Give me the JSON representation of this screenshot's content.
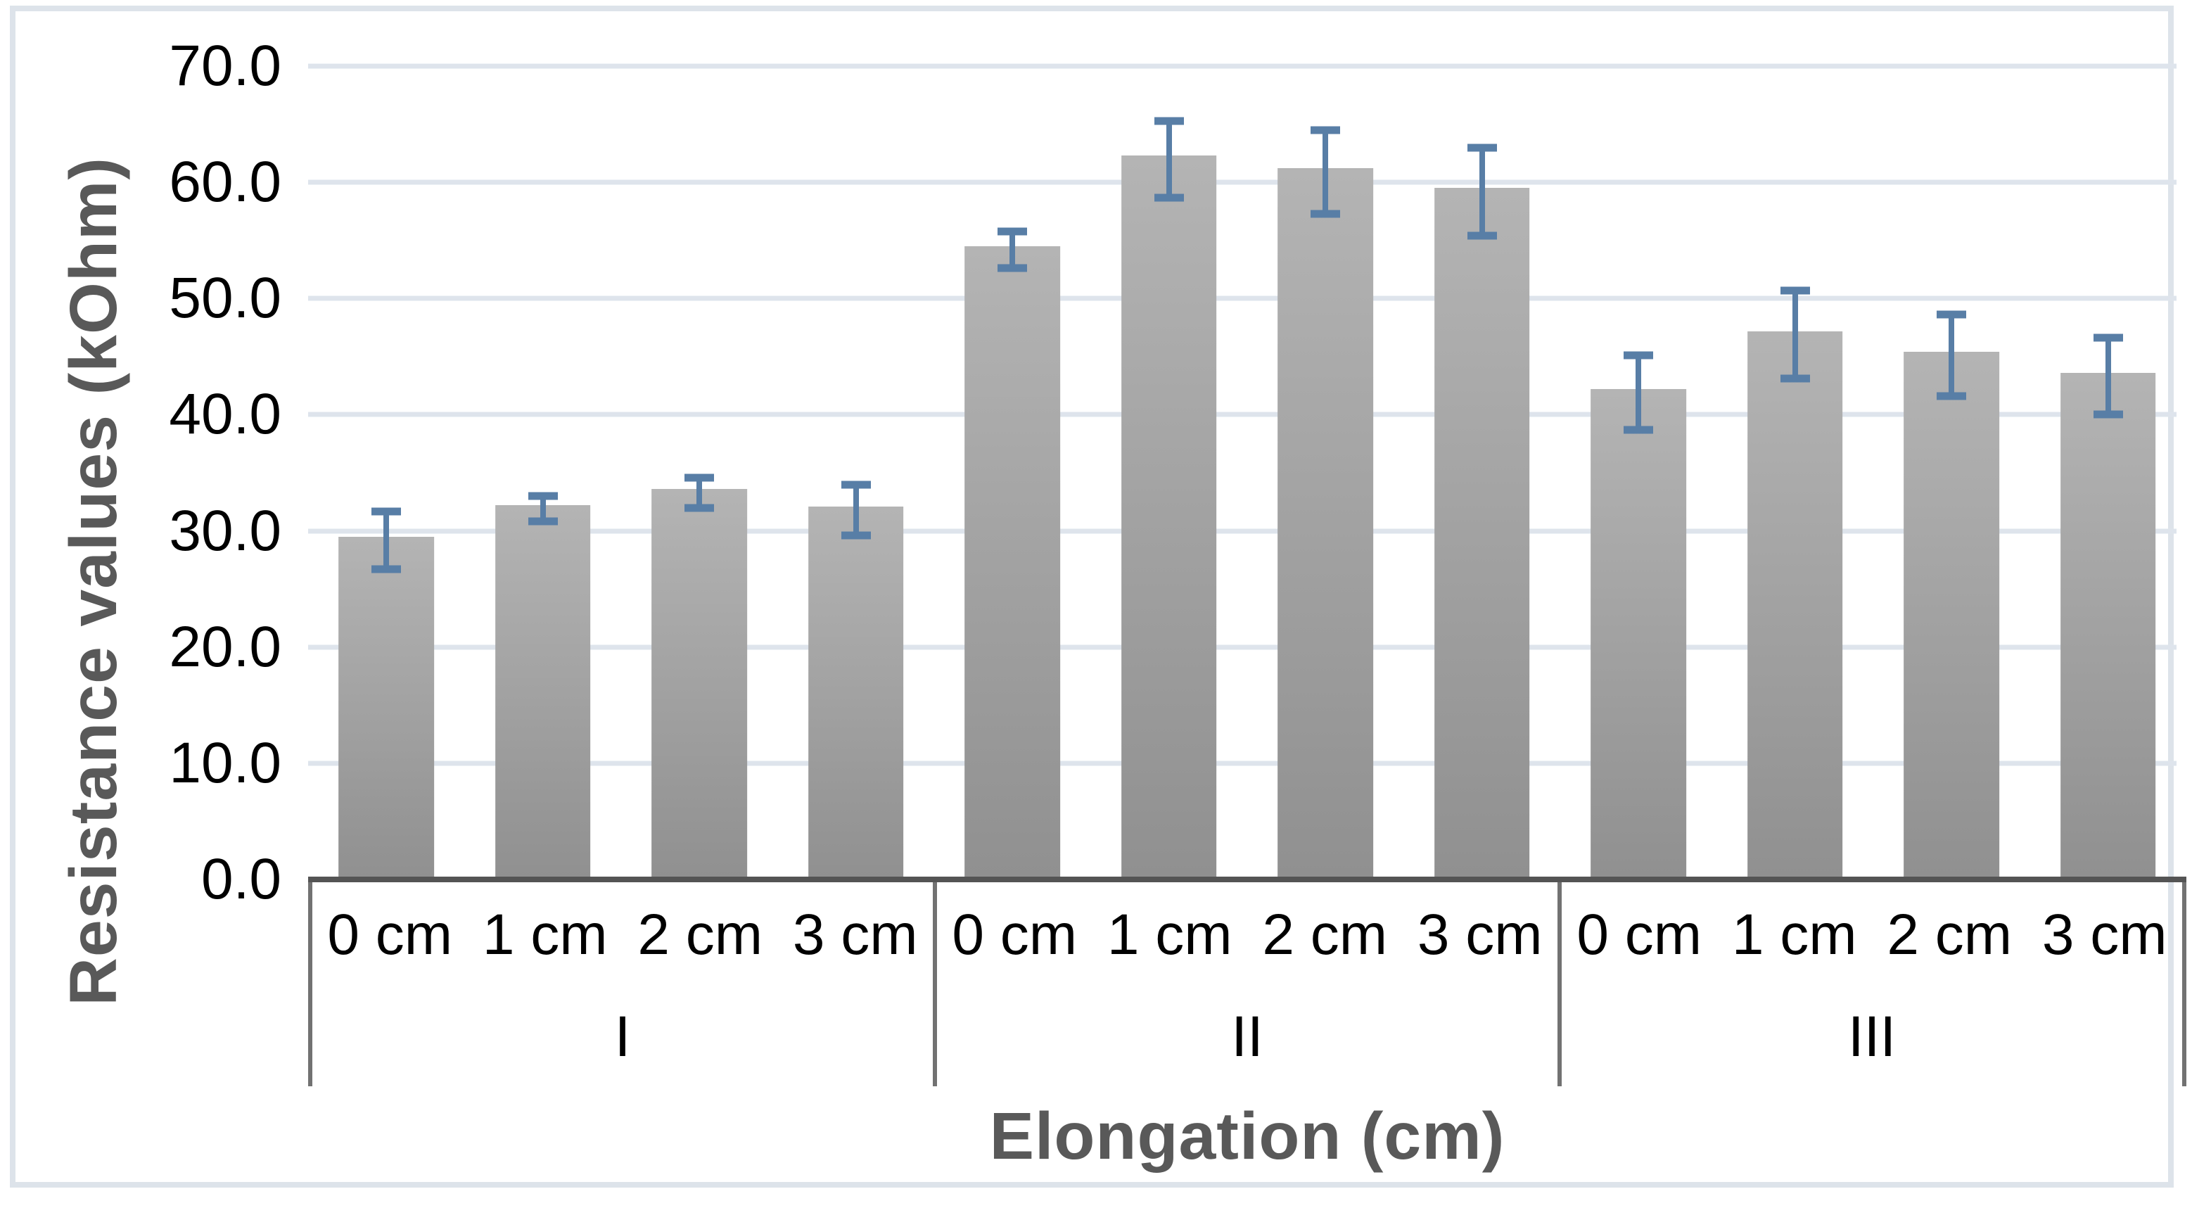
{
  "figure": {
    "background": "#ffffff",
    "border_color": "#dde3ea"
  },
  "chart_data": {
    "type": "bar",
    "title": "",
    "ylabel": "Resistance values (kOhm)",
    "xlabel": "Elongation (cm)",
    "ylim": [
      0,
      70
    ],
    "ytick_step": 10,
    "yticks": [
      "70.0",
      "60.0",
      "50.0",
      "40.0",
      "30.0",
      "20.0",
      "10.0",
      "0.0"
    ],
    "grid": true,
    "legend": "none",
    "colors": {
      "bar_top": "#b4b4b4",
      "bar_bottom": "#909090",
      "error_bar": "#587ea6",
      "gridline": "#dee4ec",
      "axis_line": "#545454",
      "group_divider": "#727272",
      "tick_label": "#000000",
      "axis_title": "#595959"
    },
    "groups": [
      {
        "label": "I",
        "categories": [
          "0 cm",
          "1 cm",
          "2 cm",
          "3 cm"
        ],
        "values": [
          29.5,
          32.2,
          33.6,
          32.1
        ],
        "errors": [
          2.5,
          1.1,
          1.3,
          2.2
        ]
      },
      {
        "label": "II",
        "categories": [
          "0 cm",
          "1 cm",
          "2 cm",
          "3 cm"
        ],
        "values": [
          54.5,
          62.3,
          61.2,
          59.5
        ],
        "errors": [
          1.6,
          3.3,
          3.6,
          3.8
        ]
      },
      {
        "label": "III",
        "categories": [
          "0 cm",
          "1 cm",
          "2 cm",
          "3 cm"
        ],
        "values": [
          42.2,
          47.2,
          45.4,
          43.6
        ],
        "errors": [
          3.2,
          3.8,
          3.5,
          3.3
        ]
      }
    ]
  }
}
